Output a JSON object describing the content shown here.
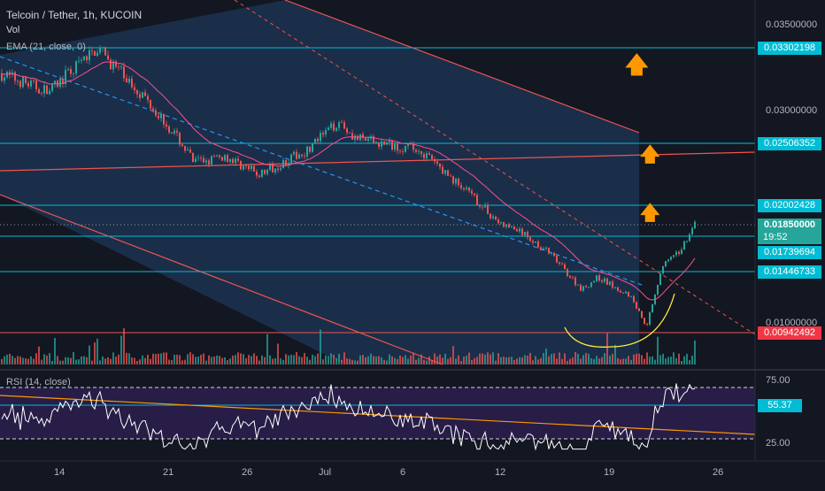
{
  "header": {
    "title": "Telcoin / Tether, 1h, KUCOIN",
    "vol_label": "Vol",
    "ema_label": "EMA (21, close, 0)",
    "rsi_label": "RSI (14, close)"
  },
  "colors": {
    "background": "#131722",
    "channel_fill": "#1e3a5f",
    "level_line": "#00bcd4",
    "trend_line": "#ef5350",
    "ema_line": "#ff4d8d",
    "annotation_arrow": "#ff9800",
    "bullish": "#26a69a",
    "bearish": "#ef5350",
    "rsi_line": "#ffffff",
    "rsi_band": "#2a1e4a",
    "rsi_trendline": "#ff9800"
  },
  "price_axis": {
    "ticks": [
      "0.03500000",
      "0.03000000",
      "0.01000000"
    ]
  },
  "price_tags": [
    {
      "name": "level-1",
      "value": "0.03302198"
    },
    {
      "name": "level-2",
      "value": "0.02506352"
    },
    {
      "name": "level-3",
      "value": "0.02002428"
    },
    {
      "name": "last-price",
      "value": "0.01850000",
      "countdown": "19:52"
    },
    {
      "name": "level-4",
      "value": "0.01739694"
    },
    {
      "name": "level-5",
      "value": "0.01446733"
    },
    {
      "name": "level-6",
      "value": "0.00942492"
    }
  ],
  "rsi_axis": {
    "ticks": [
      "75.00",
      "25.00"
    ],
    "current": "55.37"
  },
  "time_axis": {
    "ticks": [
      "14",
      "21",
      "26",
      "Jul",
      "6",
      "12",
      "19",
      "26"
    ]
  },
  "icons": [
    "up-arrow-icon",
    "up-arrow-icon",
    "up-arrow-icon"
  ],
  "chart_data": {
    "type": "candlestick",
    "symbol": "Telcoin / Tether",
    "interval": "1h",
    "exchange": "KUCOIN",
    "ylim": [
      0.0085,
      0.037
    ],
    "horizontal_levels": [
      0.03302198,
      0.02506352,
      0.02002428,
      0.01739694,
      0.01446733,
      0.00942492
    ],
    "last_price": 0.0185,
    "close_path": [
      {
        "x": "Jun 10",
        "y": 0.031
      },
      {
        "x": "Jun 13",
        "y": 0.0295
      },
      {
        "x": "Jun 16",
        "y": 0.033
      },
      {
        "x": "Jun 19",
        "y": 0.029
      },
      {
        "x": "Jun 21",
        "y": 0.0255
      },
      {
        "x": "Jun 22",
        "y": 0.0235
      },
      {
        "x": "Jun 24",
        "y": 0.024
      },
      {
        "x": "Jun 26",
        "y": 0.0225
      },
      {
        "x": "Jun 29",
        "y": 0.0245
      },
      {
        "x": "Jul 1",
        "y": 0.027
      },
      {
        "x": "Jul 2",
        "y": 0.0255
      },
      {
        "x": "Jul 4",
        "y": 0.025
      },
      {
        "x": "Jul 6",
        "y": 0.0245
      },
      {
        "x": "Jul 9",
        "y": 0.021
      },
      {
        "x": "Jul 11",
        "y": 0.0185
      },
      {
        "x": "Jul 12",
        "y": 0.018
      },
      {
        "x": "Jul 14",
        "y": 0.016
      },
      {
        "x": "Jul 16",
        "y": 0.013
      },
      {
        "x": "Jul 17",
        "y": 0.014
      },
      {
        "x": "Jul 19",
        "y": 0.0125
      },
      {
        "x": "Jul 20",
        "y": 0.01
      },
      {
        "x": "Jul 21",
        "y": 0.015
      },
      {
        "x": "Jul 22",
        "y": 0.016
      },
      {
        "x": "Jul 23",
        "y": 0.0185
      }
    ],
    "rsi": {
      "period": 14,
      "upper_band": 75,
      "lower_band": 25,
      "current": 55.37
    }
  }
}
